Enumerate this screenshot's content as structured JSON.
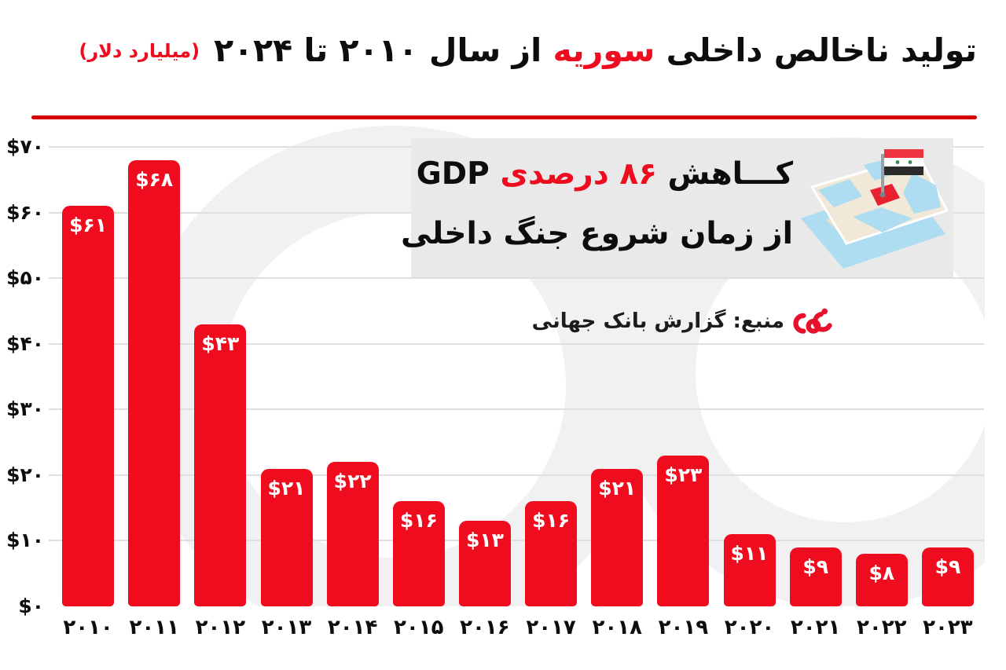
{
  "title": {
    "main_prefix": "تولید ناخالص داخلی ",
    "highlight": "سوریه",
    "main_suffix": " از سال ۲۰۱۰ تا ۲۰۲۴",
    "unit": "(میلیارد دلار)"
  },
  "annotation": {
    "line1_prefix": "کـــاهش ",
    "line1_highlight": "۸۶ درصدی",
    "line1_suffix": " GDP",
    "line2": "از زمان شروع جنگ داخلی",
    "icon": "syria-map-flag-icon"
  },
  "source": {
    "label": "منبع: گزارش بانک جهانی",
    "logo": "nama-logo"
  },
  "colors": {
    "accent": "#ee0c1e",
    "bar": "#ee0c1e",
    "divider": "#d60008",
    "box_bg": "#e9e9e9",
    "grid": "#dfdfdf",
    "watermark": "#f1f1f1",
    "ink": "#0d0d0d"
  },
  "chart_data": {
    "type": "bar",
    "title": "تولید ناخالص داخلی سوریه از سال ۲۰۱۰ تا ۲۰۲۴ (میلیارد دلار)",
    "ylabel": "میلیارد دلار",
    "categories": [
      "۲۰۱۰",
      "۲۰۱۱",
      "۲۰۱۲",
      "۲۰۱۳",
      "۲۰۱۴",
      "۲۰۱۵",
      "۲۰۱۶",
      "۲۰۱۷",
      "۲۰۱۸",
      "۲۰۱۹",
      "۲۰۲۰",
      "۲۰۲۱",
      "۲۰۲۲",
      "۲۰۲۳"
    ],
    "values": [
      61,
      68,
      43,
      21,
      22,
      16,
      13,
      16,
      21,
      23,
      11,
      9,
      8,
      9
    ],
    "bar_labels": [
      "$۶۱",
      "$۶۸",
      "$۴۳",
      "$۲۱",
      "$۲۲",
      "$۱۶",
      "$۱۳",
      "$۱۶",
      "$۲۱",
      "$۲۳",
      "$۱۱",
      "$۹",
      "$۸",
      "$۹"
    ],
    "y_ticks": [
      {
        "value": 70,
        "label": "$۷۰"
      },
      {
        "value": 60,
        "label": "$۶۰"
      },
      {
        "value": 50,
        "label": "$۵۰"
      },
      {
        "value": 40,
        "label": "$۴۰"
      },
      {
        "value": 30,
        "label": "$۳۰"
      },
      {
        "value": 20,
        "label": "$۲۰"
      },
      {
        "value": 10,
        "label": "$۱۰"
      },
      {
        "value": 0,
        "label": "$۰"
      }
    ],
    "ylim": [
      0,
      70
    ],
    "grid": true,
    "legend": false,
    "bar_color": "#ee0c1e"
  }
}
